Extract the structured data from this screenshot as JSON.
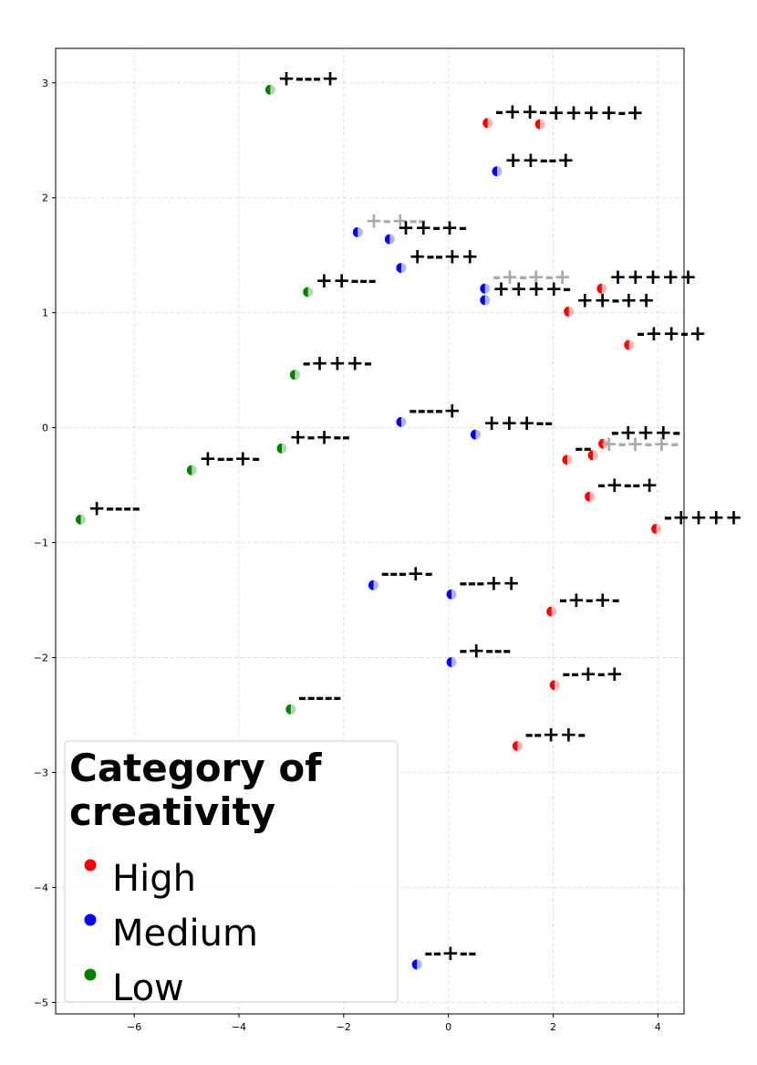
{
  "chart_data": {
    "type": "scatter",
    "title": "",
    "xlabel": "",
    "ylabel": "",
    "xlim": [
      -7.5,
      4.5
    ],
    "ylim": [
      -5.1,
      3.3
    ],
    "grid": true,
    "xticks": [
      -6,
      -4,
      -2,
      0,
      2,
      4
    ],
    "yticks": [
      -5,
      -4,
      -3,
      -2,
      -1,
      0,
      1,
      2,
      3
    ],
    "colors": {
      "High": "#ff0000",
      "Medium": "#0000ff",
      "Low": "#008000"
    },
    "legend": {
      "title": "Category of creativity",
      "title_lines": [
        "Category of",
        "creativity"
      ],
      "entries": [
        "High",
        "Medium",
        "Low"
      ],
      "location": "lower-left"
    },
    "points": [
      {
        "x": -3.4,
        "y": 2.94,
        "cat": "Low",
        "label": "+---+",
        "faded": false
      },
      {
        "x": 0.75,
        "y": 2.65,
        "cat": "High",
        "label": "-++-",
        "faded": false
      },
      {
        "x": 1.75,
        "y": 2.64,
        "cat": "High",
        "label": "++++-+",
        "faded": false
      },
      {
        "x": 0.93,
        "y": 2.23,
        "cat": "Medium",
        "label": "++--+",
        "faded": false
      },
      {
        "x": -1.73,
        "y": 1.7,
        "cat": "Medium",
        "label": "+-+--",
        "faded": true
      },
      {
        "x": -1.12,
        "y": 1.64,
        "cat": "Medium",
        "label": "++-+-",
        "faded": false
      },
      {
        "x": -0.9,
        "y": 1.39,
        "cat": "Medium",
        "label": "+--++",
        "faded": false
      },
      {
        "x": -2.68,
        "y": 1.18,
        "cat": "Low",
        "label": "++---",
        "faded": false
      },
      {
        "x": 0.7,
        "y": 1.21,
        "cat": "Medium",
        "label": "-+-+-+",
        "faded": true
      },
      {
        "x": 0.7,
        "y": 1.11,
        "cat": "Medium",
        "label": "++++-",
        "faded": false
      },
      {
        "x": 2.93,
        "y": 1.21,
        "cat": "High",
        "label": "+++++",
        "faded": false
      },
      {
        "x": 2.3,
        "y": 1.01,
        "cat": "High",
        "label": "++-++",
        "faded": false
      },
      {
        "x": 3.45,
        "y": 0.72,
        "cat": "High",
        "label": "-++-+",
        "faded": false
      },
      {
        "x": -2.93,
        "y": 0.46,
        "cat": "Low",
        "label": "-+++-",
        "faded": false
      },
      {
        "x": -0.9,
        "y": 0.05,
        "cat": "Medium",
        "label": "----+",
        "faded": false
      },
      {
        "x": 0.52,
        "y": -0.06,
        "cat": "Medium",
        "label": "+++--",
        "faded": false
      },
      {
        "x": 2.96,
        "y": -0.14,
        "cat": "High",
        "label": "-+++-",
        "faded": false
      },
      {
        "x": 2.27,
        "y": -0.28,
        "cat": "High",
        "label": "--",
        "faded": false
      },
      {
        "x": 2.76,
        "y": -0.24,
        "cat": "High",
        "label": "+-+-+-",
        "faded": true
      },
      {
        "x": -3.18,
        "y": -0.18,
        "cat": "Low",
        "label": "+-+--",
        "faded": false
      },
      {
        "x": -4.9,
        "y": -0.37,
        "cat": "Low",
        "label": "+--+-",
        "faded": false
      },
      {
        "x": 2.7,
        "y": -0.6,
        "cat": "High",
        "label": "-+--+",
        "faded": false
      },
      {
        "x": -7.02,
        "y": -0.8,
        "cat": "Low",
        "label": "+----",
        "faded": false
      },
      {
        "x": 3.97,
        "y": -0.88,
        "cat": "High",
        "label": "-++++",
        "faded": false
      },
      {
        "x": -1.43,
        "y": -1.37,
        "cat": "Medium",
        "label": "---+-",
        "faded": false
      },
      {
        "x": 0.06,
        "y": -1.45,
        "cat": "Medium",
        "label": "---++",
        "faded": false
      },
      {
        "x": 1.97,
        "y": -1.6,
        "cat": "High",
        "label": "-+-+-",
        "faded": false
      },
      {
        "x": 0.06,
        "y": -2.04,
        "cat": "Medium",
        "label": "-+---",
        "faded": false
      },
      {
        "x": 2.03,
        "y": -2.24,
        "cat": "High",
        "label": "--+-+",
        "faded": false
      },
      {
        "x": -3.01,
        "y": -2.45,
        "cat": "Low",
        "label": "-----",
        "faded": false
      },
      {
        "x": 1.32,
        "y": -2.77,
        "cat": "High",
        "label": "--++-",
        "faded": false
      },
      {
        "x": -0.6,
        "y": -4.67,
        "cat": "Medium",
        "label": "--+--",
        "faded": false
      }
    ]
  }
}
